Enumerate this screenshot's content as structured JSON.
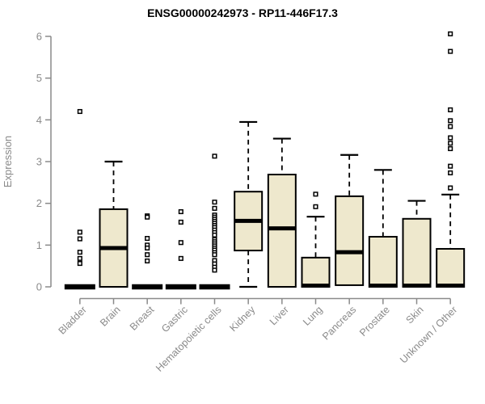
{
  "chart_data": {
    "type": "boxplot",
    "title": "ENSG00000242973 - RP11-446F17.3",
    "ylabel": "Expression",
    "xlabel": "",
    "ylim": [
      0,
      6
    ],
    "yticks": [
      0,
      1,
      2,
      3,
      4,
      5,
      6
    ],
    "grid": false,
    "legend": "none",
    "categories": [
      "Bladder",
      "Brain",
      "Breast",
      "Gastric",
      "Hematopoietic cells",
      "Kidney",
      "Liver",
      "Lung",
      "Pancreas",
      "Prostate",
      "Skin",
      "Unknown / Other"
    ],
    "series": [
      {
        "label": "Bladder",
        "min": 0,
        "q1": 0,
        "median": 0,
        "q3": 0,
        "max": 0,
        "outliers": [
          4.2,
          1.31,
          1.15,
          0.83,
          0.68,
          0.56
        ]
      },
      {
        "label": "Brain",
        "min": 0,
        "q1": 0,
        "median": 0.93,
        "q3": 1.86,
        "max": 3.0,
        "outliers": []
      },
      {
        "label": "Breast",
        "min": 0,
        "q1": 0,
        "median": 0,
        "q3": 0,
        "max": 0,
        "outliers": [
          1.7,
          1.67,
          1.16,
          1.0,
          0.93,
          0.77,
          0.62
        ]
      },
      {
        "label": "Gastric",
        "min": 0,
        "q1": 0,
        "median": 0,
        "q3": 0,
        "max": 0,
        "outliers": [
          1.8,
          1.55,
          1.06,
          0.68
        ]
      },
      {
        "label": "Hematopoietic cells",
        "min": 0,
        "q1": 0,
        "median": 0,
        "q3": 0,
        "max": 0,
        "outliers": [
          3.13,
          2.03,
          1.88,
          1.72,
          1.67,
          1.62,
          1.57,
          1.52,
          1.47,
          1.42,
          1.36,
          1.3,
          1.24,
          1.13,
          1.08,
          1.03,
          0.98,
          0.93,
          0.88,
          0.82,
          0.77,
          0.63,
          0.55,
          0.47,
          0.4
        ]
      },
      {
        "label": "Kidney",
        "min": 0,
        "q1": 0.87,
        "median": 1.58,
        "q3": 2.28,
        "max": 3.95,
        "outliers": []
      },
      {
        "label": "Liver",
        "min": 0,
        "q1": 0,
        "median": 1.4,
        "q3": 2.69,
        "max": 3.55,
        "outliers": []
      },
      {
        "label": "Lung",
        "min": 0,
        "q1": 0,
        "median": 0.03,
        "q3": 0.7,
        "max": 1.68,
        "outliers": [
          2.22,
          1.92
        ]
      },
      {
        "label": "Pancreas",
        "min": 0,
        "q1": 0.04,
        "median": 0.83,
        "q3": 2.17,
        "max": 3.16,
        "outliers": []
      },
      {
        "label": "Prostate",
        "min": 0,
        "q1": 0,
        "median": 0.03,
        "q3": 1.2,
        "max": 2.8,
        "outliers": []
      },
      {
        "label": "Skin",
        "min": 0,
        "q1": 0,
        "median": 0.03,
        "q3": 1.63,
        "max": 2.06,
        "outliers": []
      },
      {
        "label": "Unknown / Other",
        "min": 0,
        "q1": 0,
        "median": 0.03,
        "q3": 0.91,
        "max": 2.21,
        "outliers": [
          6.06,
          5.64,
          4.24,
          3.98,
          3.84,
          3.57,
          3.44,
          3.31,
          2.89,
          2.73,
          2.37
        ]
      }
    ],
    "colors": {
      "box_fill": "#EEE8CD",
      "box_stroke": "#000000",
      "median": "#000000",
      "whisker": "#000000",
      "outlier_stroke": "#000000",
      "outlier_fill": "#ffffff",
      "axis": "#8a8a8a",
      "title": "#000000",
      "background": "#ffffff"
    }
  }
}
